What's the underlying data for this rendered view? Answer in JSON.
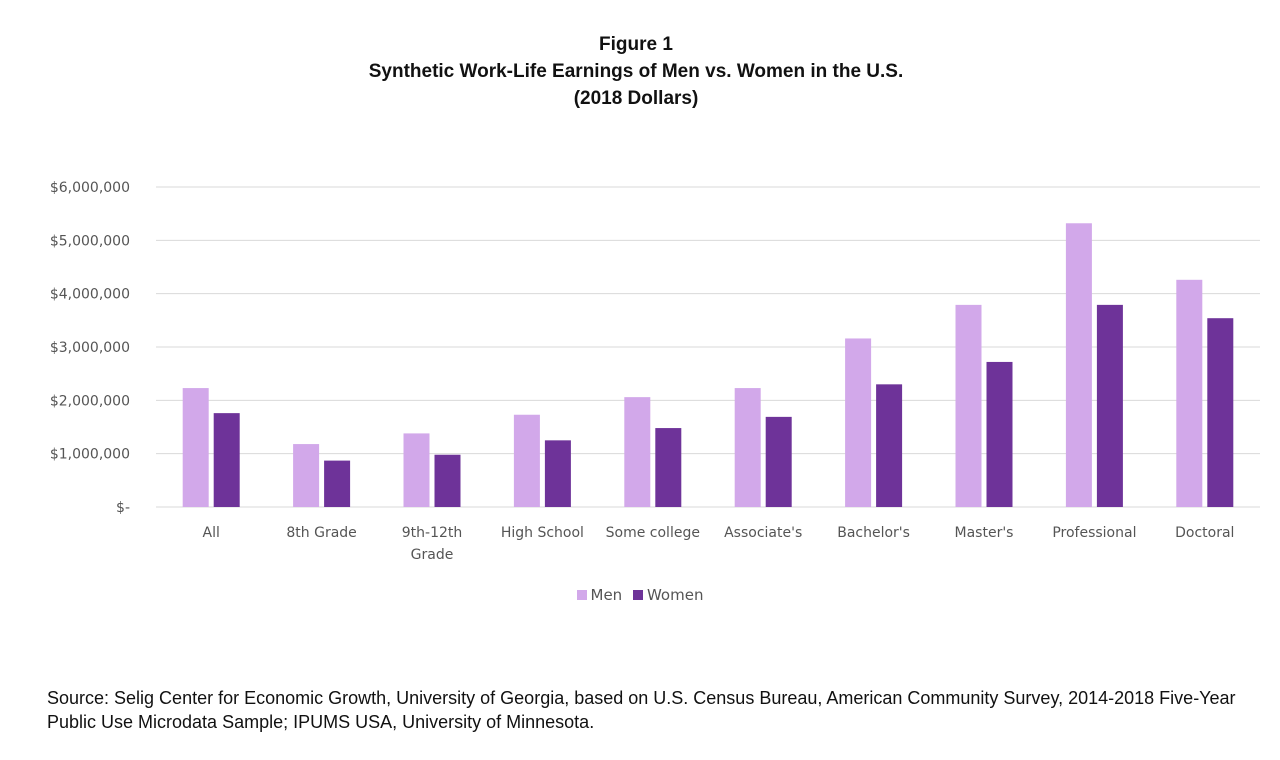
{
  "title_lines": [
    "Figure 1",
    "Synthetic Work-Life Earnings of Men vs. Women in the U.S.",
    "(2018 Dollars)"
  ],
  "source_text": "Source:  Selig Center for Economic Growth, University of Georgia, based on U.S. Census Bureau, American Community Survey, 2014-2018 Five-Year Public Use Microdata Sample;  IPUMS USA, University of Minnesota.",
  "chart_data": {
    "type": "bar",
    "title": "Synthetic Work-Life Earnings of Men vs. Women in the U.S. (2018 Dollars)",
    "categories": [
      "All",
      "8th Grade",
      "9th-12th Grade",
      "High School",
      "Some college",
      "Associate's",
      "Bachelor's",
      "Master's",
      "Professional",
      "Doctoral"
    ],
    "category_labels": [
      [
        "All"
      ],
      [
        "8th Grade"
      ],
      [
        "9th-12th",
        "Grade"
      ],
      [
        "High School"
      ],
      [
        "Some college"
      ],
      [
        "Associate's"
      ],
      [
        "Bachelor's"
      ],
      [
        "Master's"
      ],
      [
        "Professional"
      ],
      [
        "Doctoral"
      ]
    ],
    "series": [
      {
        "name": "Men",
        "color": "#d2a8ea",
        "values": [
          2230000,
          1180000,
          1380000,
          1730000,
          2060000,
          2230000,
          3160000,
          3790000,
          5320000,
          4260000
        ]
      },
      {
        "name": "Women",
        "color": "#6e3399",
        "values": [
          1760000,
          870000,
          980000,
          1250000,
          1480000,
          1690000,
          2300000,
          2720000,
          3790000,
          3540000
        ]
      }
    ],
    "ylim": [
      0,
      6000000
    ],
    "yticks": [
      0,
      1000000,
      2000000,
      3000000,
      4000000,
      5000000,
      6000000
    ],
    "ytick_labels": [
      "$-",
      "$1,000,000",
      "$2,000,000",
      "$3,000,000",
      "$4,000,000",
      "$5,000,000",
      "$6,000,000"
    ],
    "xlabel": "",
    "ylabel": "",
    "grid": true,
    "legend_position": "bottom"
  }
}
